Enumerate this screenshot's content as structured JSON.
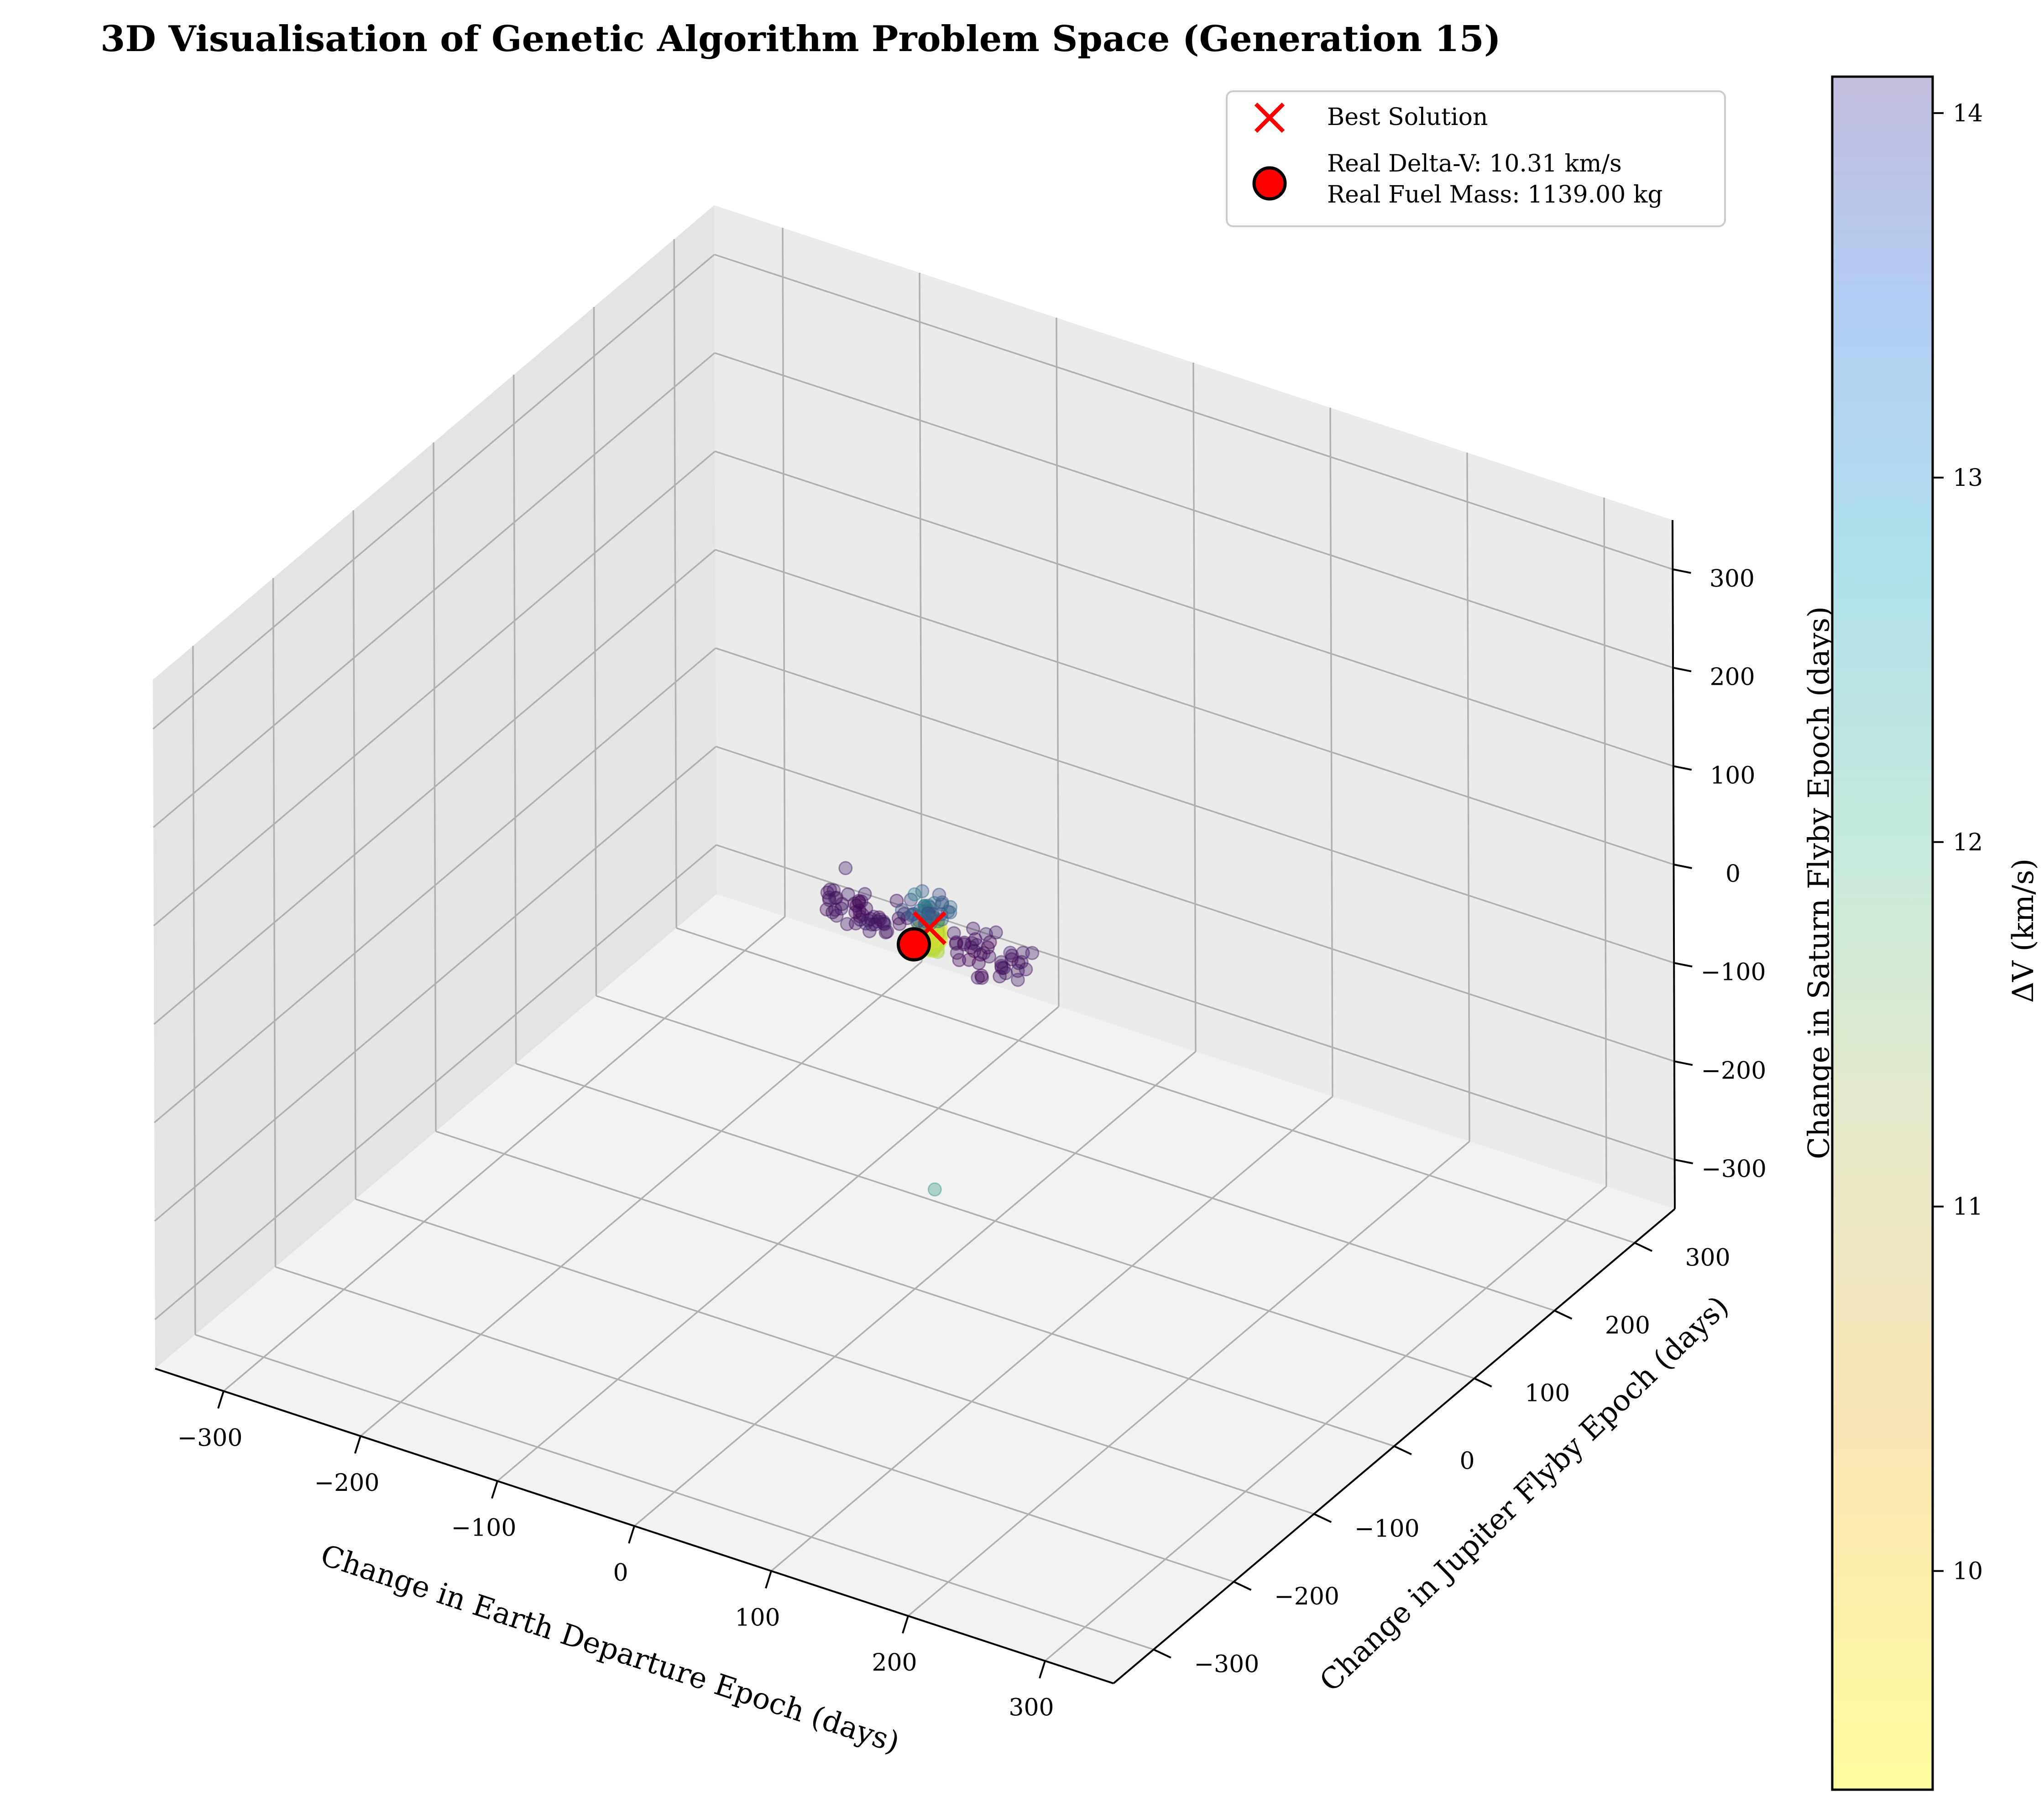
{
  "chart_data": {
    "type": "scatter3d",
    "title": "3D Visualisation of Genetic Algorithm Problem Space (Generation 15)",
    "xlabel": "Change in Earth Departure Epoch (days)",
    "ylabel": "Change in Jupiter Flyby Epoch (days)",
    "zlabel": "Change in Saturn Flyby Epoch (days)",
    "xlim": [
      -350,
      350
    ],
    "ylim": [
      -350,
      350
    ],
    "zlim": [
      -350,
      350
    ],
    "xticks": [
      "−300",
      "−200",
      "−100",
      "0",
      "100",
      "200",
      "300"
    ],
    "yticks": [
      "−300",
      "−200",
      "−100",
      "0",
      "100",
      "200",
      "300"
    ],
    "zticks": [
      "−300",
      "−200",
      "−100",
      "0",
      "100",
      "200",
      "300"
    ],
    "grid": true,
    "colorbar": {
      "label": "ΔV (km/s)",
      "min": 9.4,
      "max": 14.1,
      "ticks": [
        "10",
        "11",
        "12",
        "13",
        "14"
      ],
      "colormap": "viridis_r"
    },
    "legend": {
      "position": "top-right",
      "entries": [
        {
          "label": "Best Solution",
          "marker": "x",
          "color": "#ff0000"
        },
        {
          "label": "Real Delta-V: 10.31 km/s",
          "label2": "Real Fuel Mass: 1139.00 kg",
          "marker": "o",
          "color": "#ff0000"
        }
      ]
    },
    "best_solution": {
      "x": 8,
      "y": 6,
      "z": 16
    },
    "real_solution": {
      "x": 0,
      "y": 0,
      "z": 0
    },
    "population_summary": {
      "cluster_center": {
        "x": 8,
        "y": 6,
        "z": 10
      },
      "delta_v_range": [
        9.4,
        14.1
      ],
      "outlier": {
        "x": 10,
        "y": 8,
        "z": -250,
        "delta_v": 11.5
      }
    }
  }
}
